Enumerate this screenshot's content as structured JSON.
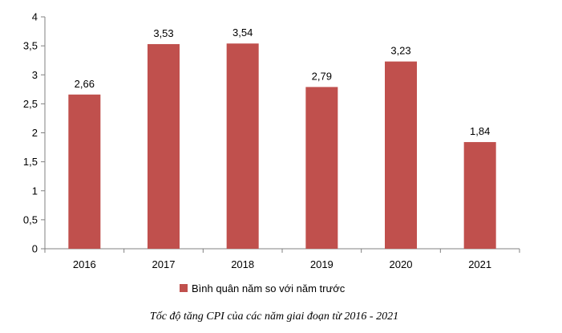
{
  "chart_data": {
    "type": "bar",
    "categories": [
      "2016",
      "2017",
      "2018",
      "2019",
      "2020",
      "2021"
    ],
    "series": [
      {
        "name": "Bình quân năm so với năm trước",
        "values": [
          2.66,
          3.53,
          3.54,
          2.79,
          3.23,
          1.84
        ],
        "labels": [
          "2,66",
          "3,53",
          "3,54",
          "2,79",
          "3,23",
          "1,84"
        ],
        "color": "#c0504d"
      }
    ],
    "y_ticks": [
      {
        "value": 0,
        "label": "0"
      },
      {
        "value": 0.5,
        "label": "0,5"
      },
      {
        "value": 1,
        "label": "1"
      },
      {
        "value": 1.5,
        "label": "1,5"
      },
      {
        "value": 2,
        "label": "2"
      },
      {
        "value": 2.5,
        "label": "2,5"
      },
      {
        "value": 3,
        "label": "3"
      },
      {
        "value": 3.5,
        "label": "3,5"
      },
      {
        "value": 4,
        "label": "4"
      }
    ],
    "ylim": [
      0,
      4
    ],
    "xlabel": "",
    "ylabel": "",
    "grid": false,
    "legend_position": "bottom",
    "caption": "Tốc độ tăng CPI của các năm giai đoạn từ 2016 - 2021"
  }
}
